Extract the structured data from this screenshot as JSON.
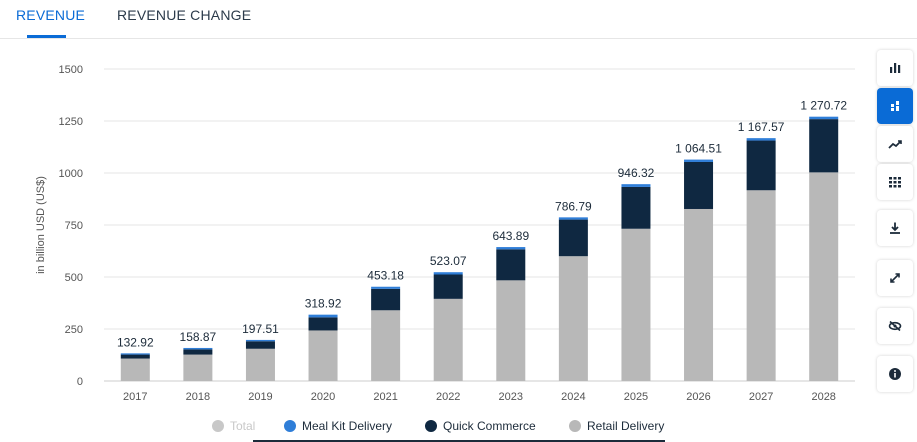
{
  "tabs": [
    {
      "label": "REVENUE",
      "active": true
    },
    {
      "label": "REVENUE CHANGE",
      "active": false
    }
  ],
  "sidebar": [
    {
      "icon": "bar-chart-icon",
      "active": false
    },
    {
      "icon": "stacked-bar-icon",
      "active": true
    },
    {
      "icon": "trend-line-icon",
      "active": false
    },
    {
      "icon": "table-grid-icon",
      "active": false
    },
    {
      "icon": "download-icon",
      "active": false
    },
    {
      "icon": "fullscreen-icon",
      "active": false
    },
    {
      "icon": "hide-icon",
      "active": false
    },
    {
      "icon": "info-icon",
      "active": false
    }
  ],
  "legend": [
    {
      "label": "Total",
      "color": "#c8c8c8",
      "muted": true
    },
    {
      "label": "Meal Kit Delivery",
      "color": "#2f7ed8",
      "muted": false
    },
    {
      "label": "Quick Commerce",
      "color": "#0f2841",
      "muted": false
    },
    {
      "label": "Retail Delivery",
      "color": "#b8b8b8",
      "muted": false
    }
  ],
  "chart_data": {
    "type": "bar",
    "stacked": true,
    "ylabel": "in billion USD (US$)",
    "ylim": [
      0,
      1500
    ],
    "yticks": [
      0,
      250,
      500,
      750,
      1000,
      1250,
      1500
    ],
    "grid": true,
    "categories": [
      "2017",
      "2018",
      "2019",
      "2020",
      "2021",
      "2022",
      "2023",
      "2024",
      "2025",
      "2026",
      "2027",
      "2028"
    ],
    "series": [
      {
        "name": "Retail Delivery",
        "color": "#b8b8b8",
        "values": [
          108,
          127,
          155,
          243,
          340,
          395,
          484,
          600,
          732,
          827,
          917,
          1003
        ]
      },
      {
        "name": "Quick Commerce",
        "color": "#0f2841",
        "values": [
          19,
          25,
          36,
          63,
          103,
          117,
          149,
          176,
          201,
          226,
          239,
          256
        ]
      },
      {
        "name": "Meal Kit Delivery",
        "color": "#2f7ed8",
        "values": [
          5.92,
          6.87,
          6.51,
          12.92,
          10.18,
          11.07,
          10.89,
          10.79,
          13.32,
          11.51,
          11.57,
          11.72
        ]
      }
    ],
    "totals": [
      "132.92",
      "158.87",
      "197.51",
      "318.92",
      "453.18",
      "523.07",
      "643.89",
      "786.79",
      "946.32",
      "1 064.51",
      "1 167.57",
      "1 270.72"
    ],
    "total_values": [
      132.92,
      158.87,
      197.51,
      318.92,
      453.18,
      523.07,
      643.89,
      786.79,
      946.32,
      1064.51,
      1167.57,
      1270.72
    ]
  }
}
